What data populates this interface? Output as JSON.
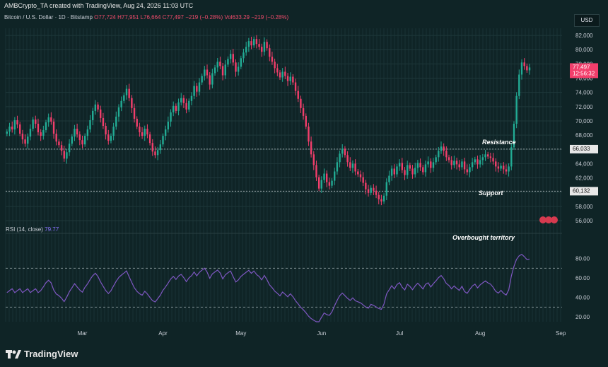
{
  "header": {
    "created_text": "AMBCrypto_TA created with TradingView, Aug 24, 2026 11:03 UTC"
  },
  "symbol": {
    "name": "Bitcoin / U.S. Dollar · 1D · Bitstamp",
    "open": "O77,724",
    "high": "H77,951",
    "low": "L76,664",
    "close": "C77,497",
    "change": "−219 (−0.28%)",
    "volume": "Vol633.29",
    "volume_change": "−219 (−0.28%)"
  },
  "currency": "USD",
  "annotations": {
    "resistance": "Resistance",
    "support": "Support",
    "overbought": "Overbought territory"
  },
  "price_badges": {
    "last_price": "77,497",
    "countdown": "12:56:32",
    "resistance": "66,033",
    "support": "60,132"
  },
  "rsi": {
    "label": "RSI (14, close)",
    "value": "79.77"
  },
  "brand": "TradingView",
  "colors": {
    "up": "#22ab94",
    "down": "#f23e6b",
    "rsi_line": "#7e57c2",
    "background": "#0f2426"
  },
  "chart_data": [
    {
      "type": "candlestick",
      "ylim": [
        56000,
        83000
      ],
      "y_ticks": [
        "82,000",
        "80,000",
        "78,000",
        "76,000",
        "74,000",
        "72,000",
        "70,000",
        "68,000",
        "66,000",
        "64,000",
        "62,000",
        "60,000",
        "58,000",
        "56,000"
      ],
      "y_tick_values": [
        82000,
        80000,
        78000,
        76000,
        74000,
        72000,
        70000,
        68000,
        66000,
        64000,
        62000,
        60000,
        58000,
        56000
      ],
      "x_ticks": [
        "Mar",
        "Apr",
        "May",
        "Jun",
        "Jul",
        "Aug",
        "Sep"
      ],
      "x_tick_days": [
        29,
        60,
        90,
        121,
        151,
        182,
        213
      ],
      "closes": [
        68500,
        69200,
        68800,
        70100,
        69500,
        68200,
        67400,
        66800,
        67800,
        68900,
        70200,
        69600,
        68400,
        67900,
        68700,
        69800,
        70500,
        69900,
        68200,
        67100,
        66600,
        65800,
        64700,
        65600,
        66800,
        67800,
        68900,
        68100,
        67300,
        66700,
        67900,
        68800,
        70100,
        71400,
        72300,
        71600,
        70400,
        69300,
        68100,
        67200,
        67900,
        69200,
        70600,
        71900,
        72800,
        73600,
        74500,
        73200,
        71800,
        70300,
        69200,
        68400,
        67900,
        68900,
        68100,
        66900,
        65700,
        65200,
        65900,
        66700,
        67900,
        68800,
        69900,
        71200,
        72100,
        71400,
        72600,
        73200,
        72500,
        71600,
        72800,
        73500,
        74900,
        74100,
        75400,
        76300,
        77200,
        76400,
        75100,
        76700,
        77500,
        78300,
        77700,
        76400,
        77900,
        78700,
        79400,
        78200,
        76900,
        77600,
        78800,
        79600,
        80400,
        81200,
        80600,
        81500,
        80800,
        80400,
        79700,
        81100,
        80200,
        79000,
        78300,
        77400,
        76800,
        76100,
        76900,
        76300,
        75600,
        76200,
        75400,
        74200,
        73100,
        71800,
        70700,
        69200,
        67100,
        65300,
        63800,
        62100,
        60500,
        61700,
        62600,
        61400,
        60900,
        61600,
        62900,
        64200,
        65400,
        66100,
        65200,
        64200,
        63400,
        64000,
        62900,
        62500,
        62100,
        61300,
        60400,
        59900,
        60600,
        60200,
        59600,
        59000,
        58700,
        59500,
        61400,
        62300,
        63300,
        62500,
        63600,
        64100,
        63100,
        62400,
        63800,
        63300,
        62500,
        63400,
        64100,
        63500,
        62800,
        63900,
        64300,
        63400,
        64200,
        64900,
        65800,
        66400,
        65800,
        64900,
        64500,
        63800,
        64400,
        63900,
        63500,
        64300,
        63200,
        62800,
        63500,
        64200,
        64600,
        63900,
        64500,
        64900,
        65300,
        65000,
        64800,
        64300,
        63600,
        63300,
        63700,
        63200,
        62900,
        63600,
        66300,
        69600,
        73500,
        76500,
        78200,
        77700,
        77100,
        77500
      ]
    },
    {
      "type": "line",
      "name": "RSI (14, close)",
      "ylim": [
        15,
        95
      ],
      "y_ticks": [
        "80.00",
        "60.00",
        "40.00",
        "20.00"
      ],
      "y_tick_values": [
        80,
        60,
        40,
        20
      ],
      "bands": [
        70,
        30
      ]
    }
  ]
}
